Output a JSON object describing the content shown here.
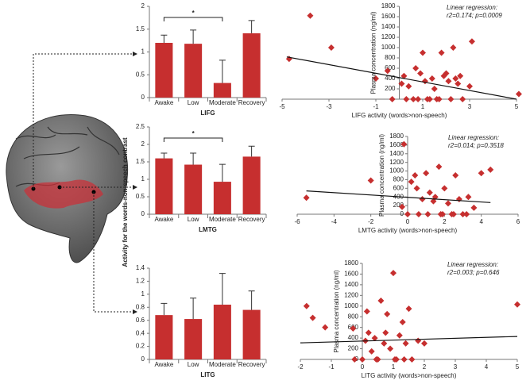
{
  "chart_data": [
    {
      "type": "bar",
      "xlabel": "LIFG",
      "categories": [
        "Awake",
        "Low",
        "Moderate",
        "Recovery"
      ],
      "values": [
        1.2,
        1.18,
        0.32,
        1.41
      ],
      "errors": [
        0.17,
        0.3,
        0.5,
        0.28
      ],
      "color": "#c62f2f",
      "ylim": [
        0,
        2
      ],
      "yticks": [
        0,
        0.5,
        1,
        1.5,
        2
      ],
      "annotation": "*"
    },
    {
      "type": "scatter",
      "xlabel": "LIFG activity (words>non-speech)",
      "ylabel": "Plasma concentration (ng/ml)",
      "annotation": [
        "Linear regression:",
        "r2=0.174; p=0.0009"
      ],
      "color": "#c62f2f",
      "x": [
        -4.7,
        -3.8,
        -2.9,
        -1.0,
        -0.5,
        -0.3,
        0.1,
        0.2,
        0.4,
        0.6,
        0.7,
        0.9,
        1.0,
        1.1,
        1.2,
        1.4,
        1.5,
        1.6,
        1.8,
        1.9,
        2.0,
        2.1,
        2.2,
        2.3,
        2.4,
        2.5,
        2.7,
        3.0,
        3.1,
        5.1,
        0.3,
        0.8,
        1.3,
        1.7,
        2.6
      ],
      "values": [
        780,
        1620,
        1000,
        400,
        550,
        0,
        300,
        450,
        250,
        0,
        600,
        500,
        900,
        350,
        0,
        400,
        200,
        0,
        900,
        450,
        500,
        350,
        0,
        1000,
        400,
        300,
        0,
        250,
        1120,
        100,
        0,
        0,
        0,
        0,
        450
      ],
      "fit": {
        "x": [
          -4.8,
          5
        ],
        "y": [
          820,
          0
        ]
      },
      "xlim": [
        -5,
        5
      ],
      "xticks": [
        -5,
        -3,
        -1,
        1,
        3,
        5
      ],
      "ylim": [
        0,
        1800
      ],
      "yticks": [
        200,
        400,
        600,
        800,
        1000,
        1200,
        1400,
        1600,
        1800
      ]
    },
    {
      "type": "bar",
      "xlabel": "LMTG",
      "ylabel": "Activity for the words-non-speech contrast",
      "categories": [
        "Awake",
        "Low",
        "Moderate",
        "Recovery"
      ],
      "values": [
        1.6,
        1.42,
        0.93,
        1.65
      ],
      "errors": [
        0.15,
        0.33,
        0.5,
        0.3
      ],
      "color": "#c62f2f",
      "ylim": [
        0,
        2.5
      ],
      "yticks": [
        0,
        0.5,
        1,
        1.5,
        2,
        2.5
      ],
      "annotation": "*"
    },
    {
      "type": "scatter",
      "xlabel": "LMTG activity (words>non-speech)",
      "ylabel": "Plasma concentration (ng/ml)",
      "annotation": [
        "Linear regression:",
        "r2=0.014; p=0.3518"
      ],
      "color": "#c62f2f",
      "x": [
        -5.5,
        -2,
        -0.3,
        0,
        0.2,
        0.4,
        0.5,
        0.8,
        1.0,
        1.2,
        1.4,
        1.5,
        1.7,
        1.9,
        2.0,
        2.2,
        2.4,
        2.6,
        2.8,
        3.0,
        3.3,
        3.6,
        4.0,
        4.5,
        0.6,
        1.1,
        1.8,
        2.5,
        3.2,
        -0.2
      ],
      "values": [
        380,
        780,
        170,
        0,
        750,
        900,
        600,
        350,
        950,
        500,
        300,
        400,
        1100,
        0,
        600,
        250,
        0,
        900,
        350,
        0,
        400,
        150,
        950,
        1030,
        0,
        0,
        0,
        0,
        0,
        1620
      ],
      "fit": {
        "x": [
          -5.5,
          4.5
        ],
        "y": [
          540,
          270
        ]
      },
      "xlim": [
        -6,
        6
      ],
      "xticks": [
        -6,
        -4,
        -2,
        0,
        2,
        4,
        6
      ],
      "ylim": [
        0,
        1800
      ],
      "yticks": [
        0,
        200,
        400,
        600,
        800,
        1000,
        1200,
        1400,
        1600,
        1800
      ]
    },
    {
      "type": "bar",
      "xlabel": "LITG",
      "categories": [
        "Awake",
        "Low",
        "Moderate",
        "Recovery"
      ],
      "values": [
        0.68,
        0.62,
        0.84,
        0.76
      ],
      "errors": [
        0.18,
        0.32,
        0.48,
        0.29
      ],
      "color": "#c62f2f",
      "ylim": [
        0,
        1.4
      ],
      "yticks": [
        0,
        0.2,
        0.4,
        0.6,
        0.8,
        1,
        1.2,
        1.4
      ]
    },
    {
      "type": "scatter",
      "xlabel": "LITG activity (words>non-speech)",
      "ylabel": "Plasma concentration (ng/ml)",
      "annotation": [
        "Linear regression:",
        "r2=0.003; p=0.646"
      ],
      "color": "#c62f2f",
      "x": [
        -1.8,
        -1.6,
        -1.2,
        -0.3,
        0,
        0.1,
        0.2,
        0.3,
        0.4,
        0.5,
        0.6,
        0.7,
        0.8,
        0.9,
        1.0,
        1.1,
        1.2,
        1.3,
        1.4,
        1.5,
        1.6,
        1.8,
        2.0,
        5.0,
        0.15,
        0.45,
        0.75,
        1.05,
        1.35,
        -0.25
      ],
      "values": [
        1000,
        780,
        600,
        580,
        0,
        350,
        500,
        150,
        400,
        0,
        1100,
        300,
        850,
        200,
        1620,
        0,
        450,
        700,
        300,
        950,
        0,
        350,
        300,
        1030,
        900,
        0,
        500,
        0,
        0,
        0
      ],
      "fit": {
        "x": [
          -2,
          5
        ],
        "y": [
          310,
          430
        ]
      },
      "xlim": [
        -2,
        5
      ],
      "xticks": [
        -2,
        -1,
        0,
        1,
        2,
        3,
        4,
        5
      ],
      "ylim": [
        0,
        1800
      ],
      "yticks": [
        0,
        200,
        400,
        600,
        800,
        1000,
        1200,
        1400,
        1600,
        1800
      ]
    }
  ]
}
